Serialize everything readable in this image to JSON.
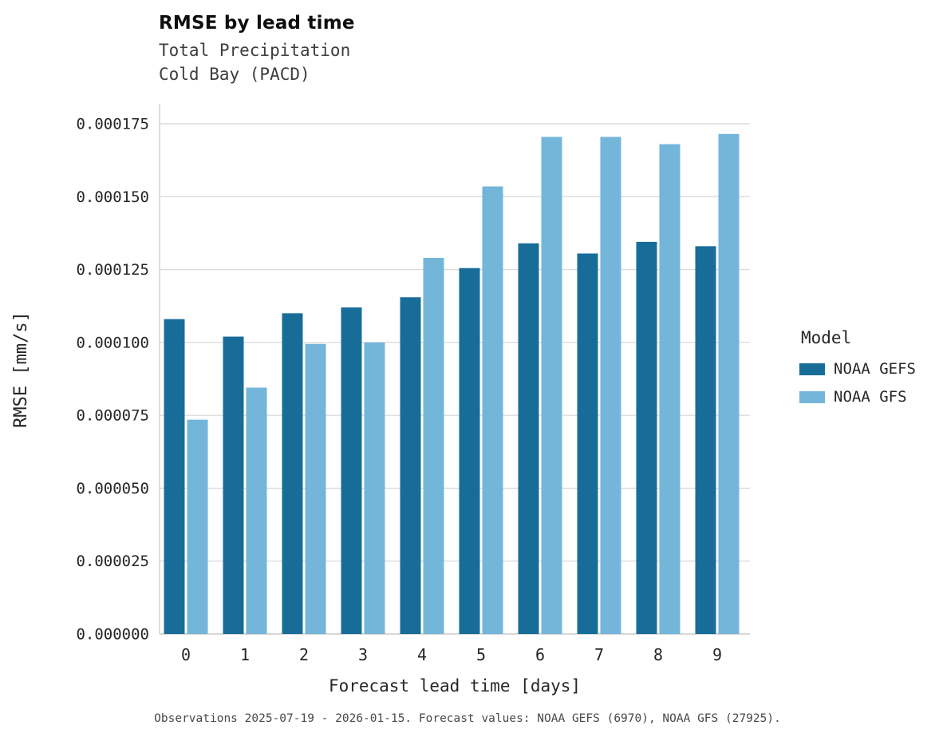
{
  "title": "RMSE by lead time",
  "subtitle": {
    "line1": "Total Precipitation",
    "line2": "Cold Bay (PACD)"
  },
  "caption": "Observations 2025-07-19 - 2026-01-15. Forecast values: NOAA GEFS (6970), NOAA GFS (27925).",
  "chart_data": {
    "type": "bar",
    "title": "RMSE by lead time",
    "subtitle": "Total Precipitation / Cold Bay (PACD)",
    "xlabel": "Forecast lead time [days]",
    "ylabel": "RMSE [mm/s]",
    "categories": [
      0,
      1,
      2,
      3,
      4,
      5,
      6,
      7,
      8,
      9
    ],
    "series": [
      {
        "name": "NOAA GEFS",
        "color": "#176d98",
        "values": [
          0.000108,
          0.000102,
          0.00011,
          0.000112,
          0.0001155,
          0.0001255,
          0.000134,
          0.0001305,
          0.0001345,
          0.000133
        ]
      },
      {
        "name": "NOAA GFS",
        "color": "#74b5da",
        "values": [
          7.35e-05,
          8.45e-05,
          9.95e-05,
          0.0001,
          0.000129,
          0.0001535,
          0.0001705,
          0.0001705,
          0.000168,
          0.0001715
        ]
      }
    ],
    "ylim": [
      0,
      0.000175
    ],
    "ytick_values": [
      0,
      2.5e-05,
      5e-05,
      7.5e-05,
      0.0001,
      0.000125,
      0.00015,
      0.000175
    ],
    "ytick_labels": [
      "0.000000",
      "0.000025",
      "0.000050",
      "0.000075",
      "0.000100",
      "0.000125",
      "0.000150",
      "0.000175"
    ],
    "xtick_labels": [
      "0",
      "1",
      "2",
      "3",
      "4",
      "5",
      "6",
      "7",
      "8",
      "9"
    ],
    "grid": "horizontal",
    "legend_title": "Model",
    "legend_position": "right"
  }
}
